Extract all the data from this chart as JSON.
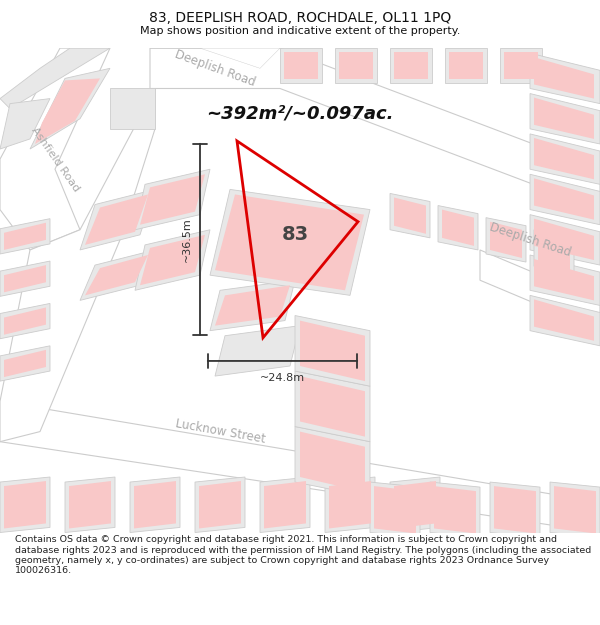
{
  "title": "83, DEEPLISH ROAD, ROCHDALE, OL11 1PQ",
  "subtitle": "Map shows position and indicative extent of the property.",
  "area_text": "~392m²/~0.097ac.",
  "property_number": "83",
  "dim_vertical": "~36.5m",
  "dim_horizontal": "~24.8m",
  "footer": "Contains OS data © Crown copyright and database right 2021. This information is subject to Crown copyright and database rights 2023 and is reproduced with the permission of HM Land Registry. The polygons (including the associated geometry, namely x, y co-ordinates) are subject to Crown copyright and database rights 2023 Ordnance Survey 100026316.",
  "map_bg": "#f5f5f5",
  "road_fill": "#ffffff",
  "road_edge": "#cccccc",
  "building_fill": "#e8e8e8",
  "building_edge": "#cccccc",
  "building_inner": "#f9c8c8",
  "property_stroke": "#dd0000",
  "title_color": "#111111",
  "road_label_color": "#aaaaaa",
  "dim_color": "#333333",
  "footer_color": "#222222",
  "white": "#ffffff"
}
